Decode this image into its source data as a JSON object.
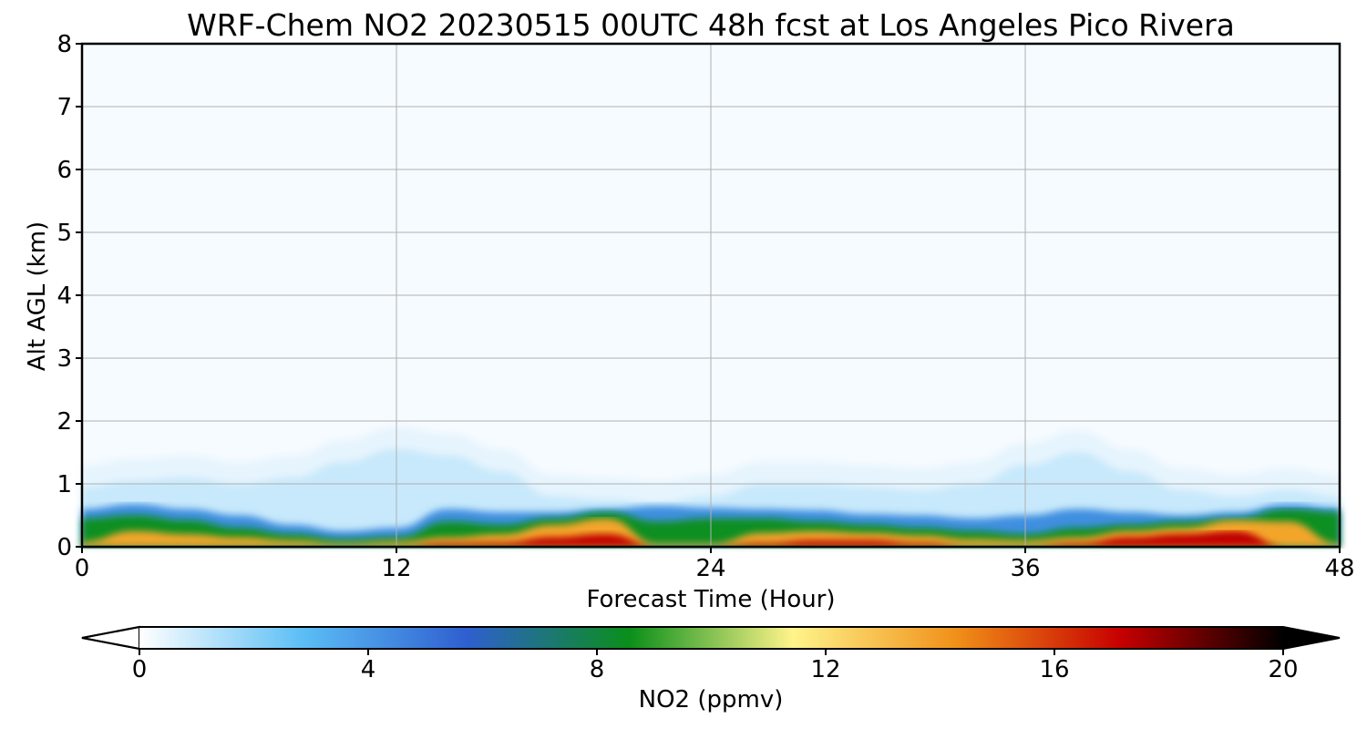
{
  "chart_data": {
    "type": "heatmap",
    "title": "WRF-Chem NO2  20230515 00UTC 48h fcst at Los Angeles Pico Rivera",
    "xlabel": "Forecast Time (Hour)",
    "ylabel": "Alt AGL (km)",
    "xlim": [
      0,
      48
    ],
    "ylim": [
      0,
      8
    ],
    "x_ticks": [
      0,
      12,
      24,
      36,
      48
    ],
    "y_ticks": [
      0,
      1,
      2,
      3,
      4,
      5,
      6,
      7,
      8
    ],
    "grid": true,
    "colorbar": {
      "label": "NO2  (ppmv)",
      "range": [
        0,
        20
      ],
      "ticks": [
        0,
        4,
        8,
        12,
        16,
        20
      ],
      "extend": "both",
      "colors": [
        "#ffffff",
        "#5bbef5",
        "#2f5fd0",
        "#0a8f1a",
        "#fff48a",
        "#f09018",
        "#c70000",
        "#000000"
      ]
    },
    "profiles": {
      "x": [
        0,
        2,
        4,
        6,
        8,
        10,
        12,
        14,
        16,
        18,
        20,
        22,
        24,
        26,
        28,
        30,
        32,
        34,
        36,
        38,
        40,
        42,
        44,
        46,
        48
      ],
      "top_of_red_km": [
        0.0,
        0.0,
        0.0,
        0.0,
        0.0,
        0.0,
        0.0,
        0.05,
        0.06,
        0.15,
        0.2,
        0.0,
        0.0,
        0.05,
        0.1,
        0.1,
        0.05,
        0.0,
        0.0,
        0.05,
        0.15,
        0.2,
        0.25,
        0.0,
        0.0
      ],
      "top_of_orange_km": [
        0.08,
        0.25,
        0.2,
        0.15,
        0.1,
        0.05,
        0.08,
        0.15,
        0.2,
        0.35,
        0.45,
        0.05,
        0.05,
        0.22,
        0.25,
        0.22,
        0.18,
        0.12,
        0.1,
        0.15,
        0.25,
        0.3,
        0.42,
        0.4,
        0.05
      ],
      "top_of_green_km": [
        0.45,
        0.5,
        0.42,
        0.3,
        0.2,
        0.12,
        0.15,
        0.4,
        0.35,
        0.45,
        0.55,
        0.4,
        0.45,
        0.45,
        0.4,
        0.35,
        0.3,
        0.25,
        0.2,
        0.3,
        0.35,
        0.4,
        0.45,
        0.6,
        0.55
      ],
      "top_of_dark_blue_km": [
        0.6,
        0.68,
        0.6,
        0.5,
        0.35,
        0.25,
        0.3,
        0.6,
        0.55,
        0.55,
        0.6,
        0.65,
        0.62,
        0.6,
        0.58,
        0.52,
        0.5,
        0.45,
        0.5,
        0.6,
        0.55,
        0.5,
        0.55,
        0.68,
        0.62
      ],
      "top_of_light_blue_km": [
        0.95,
        1.05,
        1.1,
        1.0,
        1.1,
        1.35,
        1.55,
        1.45,
        1.2,
        0.8,
        0.75,
        0.7,
        0.8,
        1.0,
        1.0,
        0.95,
        0.9,
        1.0,
        1.3,
        1.5,
        1.2,
        0.9,
        0.8,
        0.9,
        0.8
      ]
    }
  }
}
